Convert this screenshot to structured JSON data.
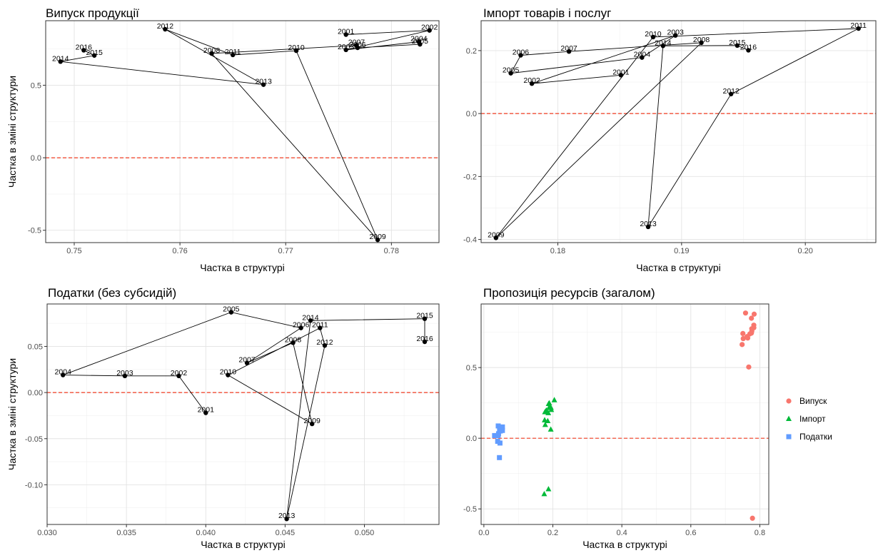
{
  "chart_data": [
    {
      "type": "scatter",
      "title": "Випуск продукції",
      "xlabel": "Частка в структурі",
      "ylabel": "Частка в зміні структури",
      "xlim": [
        0.7473,
        0.7845
      ],
      "ylim": [
        -0.585,
        0.945
      ],
      "xticks": [
        "0.75",
        "0.76",
        "0.77",
        "0.78"
      ],
      "yticks": [
        "-0.5",
        "0.0",
        "0.5"
      ],
      "reference_line": {
        "y": 0,
        "style": "dashed",
        "color": "#f03b20"
      },
      "points": [
        {
          "label": "2001",
          "x": 0.7757,
          "y": 0.849
        },
        {
          "label": "2002",
          "x": 0.7836,
          "y": 0.878
        },
        {
          "label": "2003",
          "x": 0.7757,
          "y": 0.744
        },
        {
          "label": "2004",
          "x": 0.7826,
          "y": 0.8
        },
        {
          "label": "2005",
          "x": 0.7827,
          "y": 0.782
        },
        {
          "label": "2006",
          "x": 0.7768,
          "y": 0.758
        },
        {
          "label": "2007",
          "x": 0.7767,
          "y": 0.775
        },
        {
          "label": "2008",
          "x": 0.763,
          "y": 0.719
        },
        {
          "label": "2009",
          "x": 0.7787,
          "y": -0.566
        },
        {
          "label": "2010",
          "x": 0.771,
          "y": 0.738
        },
        {
          "label": "2011",
          "x": 0.765,
          "y": 0.709
        },
        {
          "label": "2012",
          "x": 0.7586,
          "y": 0.886
        },
        {
          "label": "2013",
          "x": 0.7679,
          "y": 0.504
        },
        {
          "label": "2014",
          "x": 0.7487,
          "y": 0.663
        },
        {
          "label": "2015",
          "x": 0.7519,
          "y": 0.705
        },
        {
          "label": "2016",
          "x": 0.7509,
          "y": 0.741
        }
      ]
    },
    {
      "type": "scatter",
      "title": "Імпорт товарів і послуг",
      "xlabel": "Частка в структурі",
      "ylabel": "",
      "xlim": [
        0.1738,
        0.2057
      ],
      "ylim": [
        -0.41,
        0.295
      ],
      "xticks": [
        "0.18",
        "0.19",
        "0.20"
      ],
      "yticks": [
        "-0.4",
        "-0.2",
        "0.0",
        "0.2"
      ],
      "reference_line": {
        "y": 0,
        "style": "dashed",
        "color": "#f03b20"
      },
      "points": [
        {
          "label": "2001",
          "x": 0.1851,
          "y": 0.122
        },
        {
          "label": "2002",
          "x": 0.1779,
          "y": 0.095
        },
        {
          "label": "2003",
          "x": 0.1895,
          "y": 0.248
        },
        {
          "label": "2004",
          "x": 0.1868,
          "y": 0.178
        },
        {
          "label": "2005",
          "x": 0.1762,
          "y": 0.128
        },
        {
          "label": "2006",
          "x": 0.177,
          "y": 0.185
        },
        {
          "label": "2007",
          "x": 0.1809,
          "y": 0.197
        },
        {
          "label": "2008",
          "x": 0.1916,
          "y": 0.225
        },
        {
          "label": "2009",
          "x": 0.175,
          "y": -0.395
        },
        {
          "label": "2010",
          "x": 0.1877,
          "y": 0.243
        },
        {
          "label": "2011",
          "x": 0.2043,
          "y": 0.27
        },
        {
          "label": "2012",
          "x": 0.194,
          "y": 0.062
        },
        {
          "label": "2013",
          "x": 0.1873,
          "y": -0.36
        },
        {
          "label": "2014",
          "x": 0.1885,
          "y": 0.215
        },
        {
          "label": "2015",
          "x": 0.1945,
          "y": 0.216
        },
        {
          "label": "2016",
          "x": 0.1954,
          "y": 0.201
        }
      ]
    },
    {
      "type": "scatter",
      "title": "Податки (без субсидій)",
      "xlabel": "Частка в структурі",
      "ylabel": "Частка в зміні структури",
      "xlim": [
        0.03,
        0.0547
      ],
      "ylim": [
        -0.143,
        0.096
      ],
      "xticks": [
        "0.030",
        "0.035",
        "0.040",
        "0.045",
        "0.050"
      ],
      "yticks": [
        "-0.10",
        "-0.05",
        "0.00",
        "0.05"
      ],
      "reference_line": {
        "y": 0,
        "style": "dashed",
        "color": "#f03b20"
      },
      "points": [
        {
          "label": "2001",
          "x": 0.04,
          "y": -0.022
        },
        {
          "label": "2002",
          "x": 0.0383,
          "y": 0.018
        },
        {
          "label": "2003",
          "x": 0.0349,
          "y": 0.018
        },
        {
          "label": "2004",
          "x": 0.031,
          "y": 0.019
        },
        {
          "label": "2005",
          "x": 0.0416,
          "y": 0.087
        },
        {
          "label": "2006",
          "x": 0.046,
          "y": 0.07
        },
        {
          "label": "2007",
          "x": 0.0426,
          "y": 0.032
        },
        {
          "label": "2008",
          "x": 0.0455,
          "y": 0.054
        },
        {
          "label": "2009",
          "x": 0.0467,
          "y": -0.034
        },
        {
          "label": "2010",
          "x": 0.0414,
          "y": 0.019
        },
        {
          "label": "2011",
          "x": 0.0472,
          "y": 0.07
        },
        {
          "label": "2012",
          "x": 0.0475,
          "y": 0.051
        },
        {
          "label": "2013",
          "x": 0.0451,
          "y": -0.137
        },
        {
          "label": "2014",
          "x": 0.0466,
          "y": 0.078
        },
        {
          "label": "2015",
          "x": 0.0538,
          "y": 0.08
        },
        {
          "label": "2016",
          "x": 0.0538,
          "y": 0.055
        }
      ]
    },
    {
      "type": "scatter",
      "title": "Пропозиція ресурсів (загалом)",
      "xlabel": "Частка в структурі",
      "ylabel": "",
      "xlim": [
        -0.008,
        0.826
      ],
      "ylim": [
        -0.61,
        0.95
      ],
      "xticks": [
        "0.0",
        "0.2",
        "0.4",
        "0.6",
        "0.8"
      ],
      "yticks": [
        "-0.5",
        "0.0",
        "0.5"
      ],
      "reference_line": {
        "y": 0,
        "style": "dashed",
        "color": "#f03b20"
      },
      "legend": {
        "placement": "right",
        "entries": [
          {
            "name": "Випуск",
            "color": "#f8766d",
            "shape": "circle"
          },
          {
            "name": "Імпорт",
            "color": "#00ba38",
            "shape": "triangle"
          },
          {
            "name": "Податки",
            "color": "#619cff",
            "shape": "square"
          }
        ]
      },
      "series": [
        {
          "name": "Випуск",
          "source_panel": 0
        },
        {
          "name": "Імпорт",
          "source_panel": 1
        },
        {
          "name": "Податки",
          "source_panel": 2
        }
      ]
    }
  ]
}
